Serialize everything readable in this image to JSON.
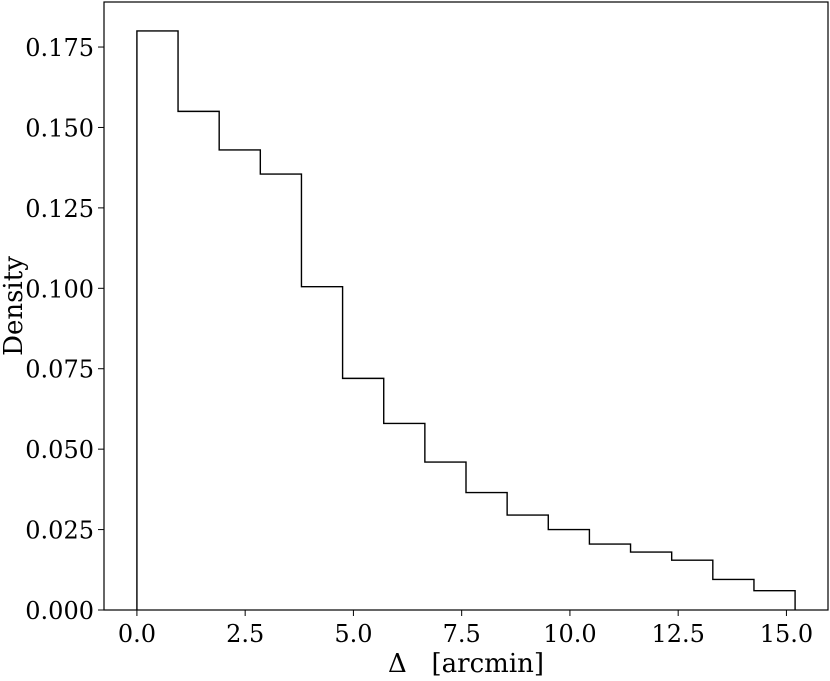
{
  "chart_data": {
    "type": "bar",
    "histtype": "step",
    "xlabel": "Δ   [arcmin]",
    "ylabel": "Density",
    "xlim": [
      -0.76,
      15.96
    ],
    "ylim": [
      0,
      0.189
    ],
    "x_ticks": [
      0.0,
      2.5,
      5.0,
      7.5,
      10.0,
      12.5,
      15.0
    ],
    "x_tick_labels": [
      "0.0",
      "2.5",
      "5.0",
      "7.5",
      "10.0",
      "12.5",
      "15.0"
    ],
    "y_ticks": [
      0.0,
      0.025,
      0.05,
      0.075,
      0.1,
      0.125,
      0.15,
      0.175
    ],
    "y_tick_labels": [
      "0.000",
      "0.025",
      "0.050",
      "0.075",
      "0.100",
      "0.125",
      "0.150",
      "0.175"
    ],
    "grid": false,
    "bin_edges": [
      0.0,
      0.95,
      1.9,
      2.85,
      3.8,
      4.75,
      5.7,
      6.65,
      7.6,
      8.55,
      9.5,
      10.45,
      11.4,
      12.35,
      13.3,
      14.25,
      15.2
    ],
    "values": [
      0.18,
      0.155,
      0.143,
      0.1355,
      0.1005,
      0.072,
      0.058,
      0.046,
      0.0365,
      0.0295,
      0.025,
      0.0205,
      0.018,
      0.0155,
      0.0095,
      0.006
    ],
    "colors": {
      "line": "#000000",
      "axes": "#000000"
    }
  }
}
